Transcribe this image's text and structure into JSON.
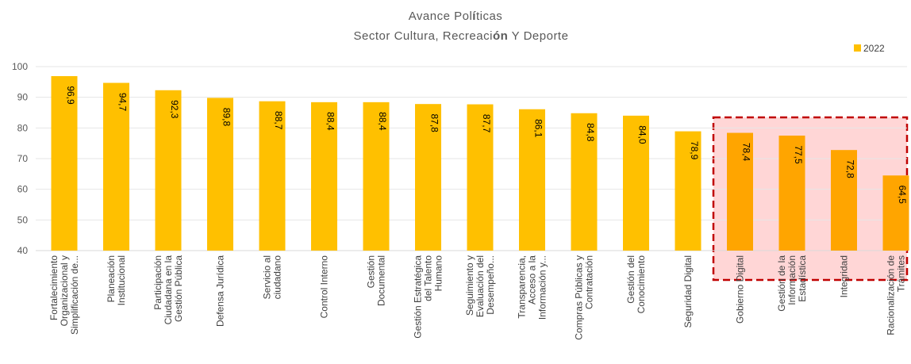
{
  "chart_data": {
    "type": "bar",
    "title": "Avance Políticas",
    "title_parts": [
      "Avance Pol",
      "í",
      "ticas"
    ],
    "subtitle": "Sector Cultura, Recreación Y Deporte",
    "subtitle_parts": [
      "Sector Cultura, Recreaci",
      "ón",
      " Y Deporte"
    ],
    "legend": {
      "label": "2022",
      "position": "top-right"
    },
    "colors": {
      "bar": "#FFC000",
      "bar_highlight": "#FFA500",
      "highlight_fill": "#FFD6D6",
      "highlight_border": "#C00000",
      "grid": "#E6E6E6",
      "axis": "#D9D9D9"
    },
    "ylim": [
      40,
      100
    ],
    "yticks": [
      "40",
      "50",
      "60",
      "70",
      "80",
      "90",
      "100"
    ],
    "grid": true,
    "categories": [
      [
        "Fortalecimiento",
        "Organizacional y",
        "Simplificación de..."
      ],
      [
        "Planeación",
        "Institucional"
      ],
      [
        "Participación",
        "Ciudadana en la",
        "Gestión Pública"
      ],
      [
        "Defensa Jurídica"
      ],
      [
        "Servicio al",
        "ciudadano"
      ],
      [
        "Control Interno"
      ],
      [
        "Gestión",
        "Documental"
      ],
      [
        "Gestión Estratégica",
        "del Talento",
        "Humano"
      ],
      [
        "Seguimiento y",
        "Evaluación del",
        "Desempeño..."
      ],
      [
        "Transparencia,",
        "Acceso a la",
        "Información y..."
      ],
      [
        "Compras Públicas y",
        "Contratación"
      ],
      [
        "Gestión del",
        "Conocimiento"
      ],
      [
        "Seguridad Digital"
      ],
      [
        "Gobierno Digital"
      ],
      [
        "Gestión de la",
        "Información",
        "Estadística"
      ],
      [
        "Integridad"
      ],
      [
        "Racionalización de",
        "Trámites"
      ]
    ],
    "values": [
      96.9,
      94.7,
      92.3,
      89.8,
      88.7,
      88.4,
      88.4,
      87.8,
      87.7,
      86.1,
      84.8,
      84.0,
      78.9,
      78.4,
      77.5,
      72.8,
      64.5
    ],
    "data_labels": [
      "96,9",
      "94,7",
      "92,3",
      "89,8",
      "88,7",
      "88,4",
      "88,4",
      "87,8",
      "87,7",
      "86,1",
      "84,8",
      "84,0",
      "78,9",
      "78,4",
      "77,5",
      "72,8",
      "64,5"
    ],
    "highlighted": [
      13,
      14,
      15,
      16
    ]
  }
}
